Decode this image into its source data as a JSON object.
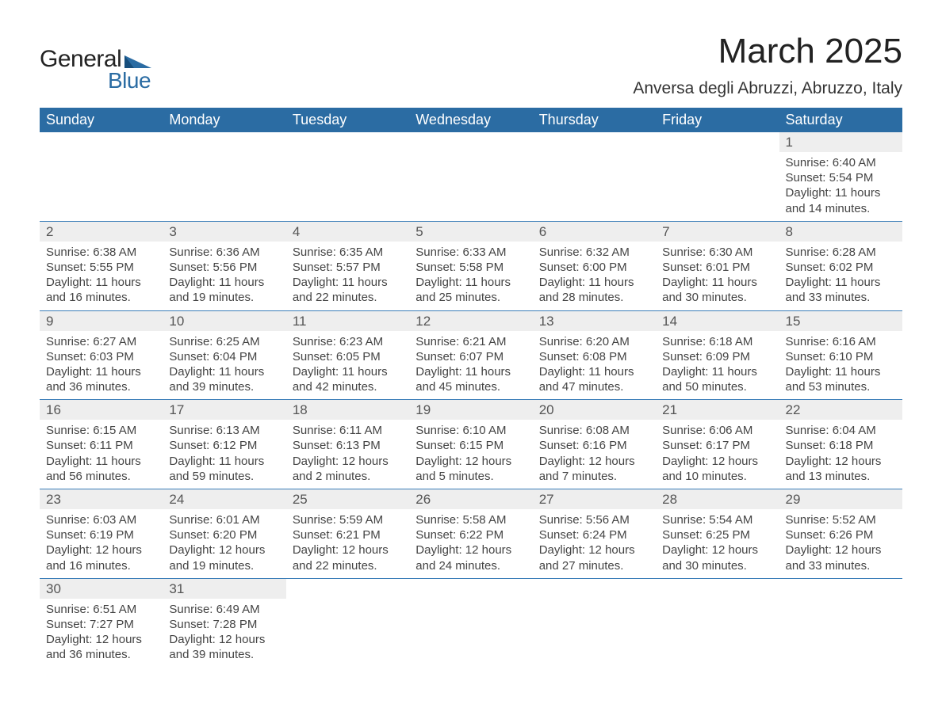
{
  "brand": {
    "name_part1": "General",
    "name_part2": "Blue",
    "accent_color": "#2b6ca3"
  },
  "title": "March 2025",
  "location": "Anversa degli Abruzzi, Abruzzo, Italy",
  "styling": {
    "header_bg": "#2b6ca3",
    "header_text": "#ffffff",
    "daynum_bg": "#eeeeee",
    "week_divider": "#3a7db8",
    "body_text": "#444444",
    "title_fontsize": 44,
    "location_fontsize": 21,
    "weekday_fontsize": 18,
    "daynum_fontsize": 17,
    "cell_fontsize": 15
  },
  "weekdays": [
    "Sunday",
    "Monday",
    "Tuesday",
    "Wednesday",
    "Thursday",
    "Friday",
    "Saturday"
  ],
  "weeks": [
    [
      {
        "blank": true
      },
      {
        "blank": true
      },
      {
        "blank": true
      },
      {
        "blank": true
      },
      {
        "blank": true
      },
      {
        "blank": true
      },
      {
        "n": 1,
        "sunrise": "6:40 AM",
        "sunset": "5:54 PM",
        "daylight": "11 hours and 14 minutes."
      }
    ],
    [
      {
        "n": 2,
        "sunrise": "6:38 AM",
        "sunset": "5:55 PM",
        "daylight": "11 hours and 16 minutes."
      },
      {
        "n": 3,
        "sunrise": "6:36 AM",
        "sunset": "5:56 PM",
        "daylight": "11 hours and 19 minutes."
      },
      {
        "n": 4,
        "sunrise": "6:35 AM",
        "sunset": "5:57 PM",
        "daylight": "11 hours and 22 minutes."
      },
      {
        "n": 5,
        "sunrise": "6:33 AM",
        "sunset": "5:58 PM",
        "daylight": "11 hours and 25 minutes."
      },
      {
        "n": 6,
        "sunrise": "6:32 AM",
        "sunset": "6:00 PM",
        "daylight": "11 hours and 28 minutes."
      },
      {
        "n": 7,
        "sunrise": "6:30 AM",
        "sunset": "6:01 PM",
        "daylight": "11 hours and 30 minutes."
      },
      {
        "n": 8,
        "sunrise": "6:28 AM",
        "sunset": "6:02 PM",
        "daylight": "11 hours and 33 minutes."
      }
    ],
    [
      {
        "n": 9,
        "sunrise": "6:27 AM",
        "sunset": "6:03 PM",
        "daylight": "11 hours and 36 minutes."
      },
      {
        "n": 10,
        "sunrise": "6:25 AM",
        "sunset": "6:04 PM",
        "daylight": "11 hours and 39 minutes."
      },
      {
        "n": 11,
        "sunrise": "6:23 AM",
        "sunset": "6:05 PM",
        "daylight": "11 hours and 42 minutes."
      },
      {
        "n": 12,
        "sunrise": "6:21 AM",
        "sunset": "6:07 PM",
        "daylight": "11 hours and 45 minutes."
      },
      {
        "n": 13,
        "sunrise": "6:20 AM",
        "sunset": "6:08 PM",
        "daylight": "11 hours and 47 minutes."
      },
      {
        "n": 14,
        "sunrise": "6:18 AM",
        "sunset": "6:09 PM",
        "daylight": "11 hours and 50 minutes."
      },
      {
        "n": 15,
        "sunrise": "6:16 AM",
        "sunset": "6:10 PM",
        "daylight": "11 hours and 53 minutes."
      }
    ],
    [
      {
        "n": 16,
        "sunrise": "6:15 AM",
        "sunset": "6:11 PM",
        "daylight": "11 hours and 56 minutes."
      },
      {
        "n": 17,
        "sunrise": "6:13 AM",
        "sunset": "6:12 PM",
        "daylight": "11 hours and 59 minutes."
      },
      {
        "n": 18,
        "sunrise": "6:11 AM",
        "sunset": "6:13 PM",
        "daylight": "12 hours and 2 minutes."
      },
      {
        "n": 19,
        "sunrise": "6:10 AM",
        "sunset": "6:15 PM",
        "daylight": "12 hours and 5 minutes."
      },
      {
        "n": 20,
        "sunrise": "6:08 AM",
        "sunset": "6:16 PM",
        "daylight": "12 hours and 7 minutes."
      },
      {
        "n": 21,
        "sunrise": "6:06 AM",
        "sunset": "6:17 PM",
        "daylight": "12 hours and 10 minutes."
      },
      {
        "n": 22,
        "sunrise": "6:04 AM",
        "sunset": "6:18 PM",
        "daylight": "12 hours and 13 minutes."
      }
    ],
    [
      {
        "n": 23,
        "sunrise": "6:03 AM",
        "sunset": "6:19 PM",
        "daylight": "12 hours and 16 minutes."
      },
      {
        "n": 24,
        "sunrise": "6:01 AM",
        "sunset": "6:20 PM",
        "daylight": "12 hours and 19 minutes."
      },
      {
        "n": 25,
        "sunrise": "5:59 AM",
        "sunset": "6:21 PM",
        "daylight": "12 hours and 22 minutes."
      },
      {
        "n": 26,
        "sunrise": "5:58 AM",
        "sunset": "6:22 PM",
        "daylight": "12 hours and 24 minutes."
      },
      {
        "n": 27,
        "sunrise": "5:56 AM",
        "sunset": "6:24 PM",
        "daylight": "12 hours and 27 minutes."
      },
      {
        "n": 28,
        "sunrise": "5:54 AM",
        "sunset": "6:25 PM",
        "daylight": "12 hours and 30 minutes."
      },
      {
        "n": 29,
        "sunrise": "5:52 AM",
        "sunset": "6:26 PM",
        "daylight": "12 hours and 33 minutes."
      }
    ],
    [
      {
        "n": 30,
        "sunrise": "6:51 AM",
        "sunset": "7:27 PM",
        "daylight": "12 hours and 36 minutes."
      },
      {
        "n": 31,
        "sunrise": "6:49 AM",
        "sunset": "7:28 PM",
        "daylight": "12 hours and 39 minutes."
      },
      {
        "blank": true
      },
      {
        "blank": true
      },
      {
        "blank": true
      },
      {
        "blank": true
      },
      {
        "blank": true
      }
    ]
  ],
  "labels": {
    "sunrise_prefix": "Sunrise: ",
    "sunset_prefix": "Sunset: ",
    "daylight_prefix": "Daylight: "
  }
}
